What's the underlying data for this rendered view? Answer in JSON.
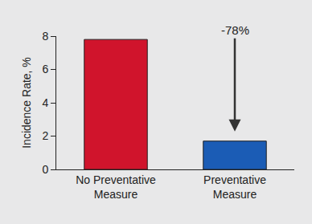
{
  "chart_data": {
    "type": "bar",
    "categories": [
      "No Preventative Measure",
      "Preventative Measure"
    ],
    "values": [
      7.8,
      1.7
    ],
    "colors": [
      "#d0142c",
      "#1b5cb5"
    ],
    "y_label": "Incidence Rate, %",
    "ylim": [
      0,
      8
    ],
    "yticks": [
      0,
      2,
      4,
      6,
      8
    ],
    "grid": false,
    "annotations": [
      "-78%"
    ]
  }
}
